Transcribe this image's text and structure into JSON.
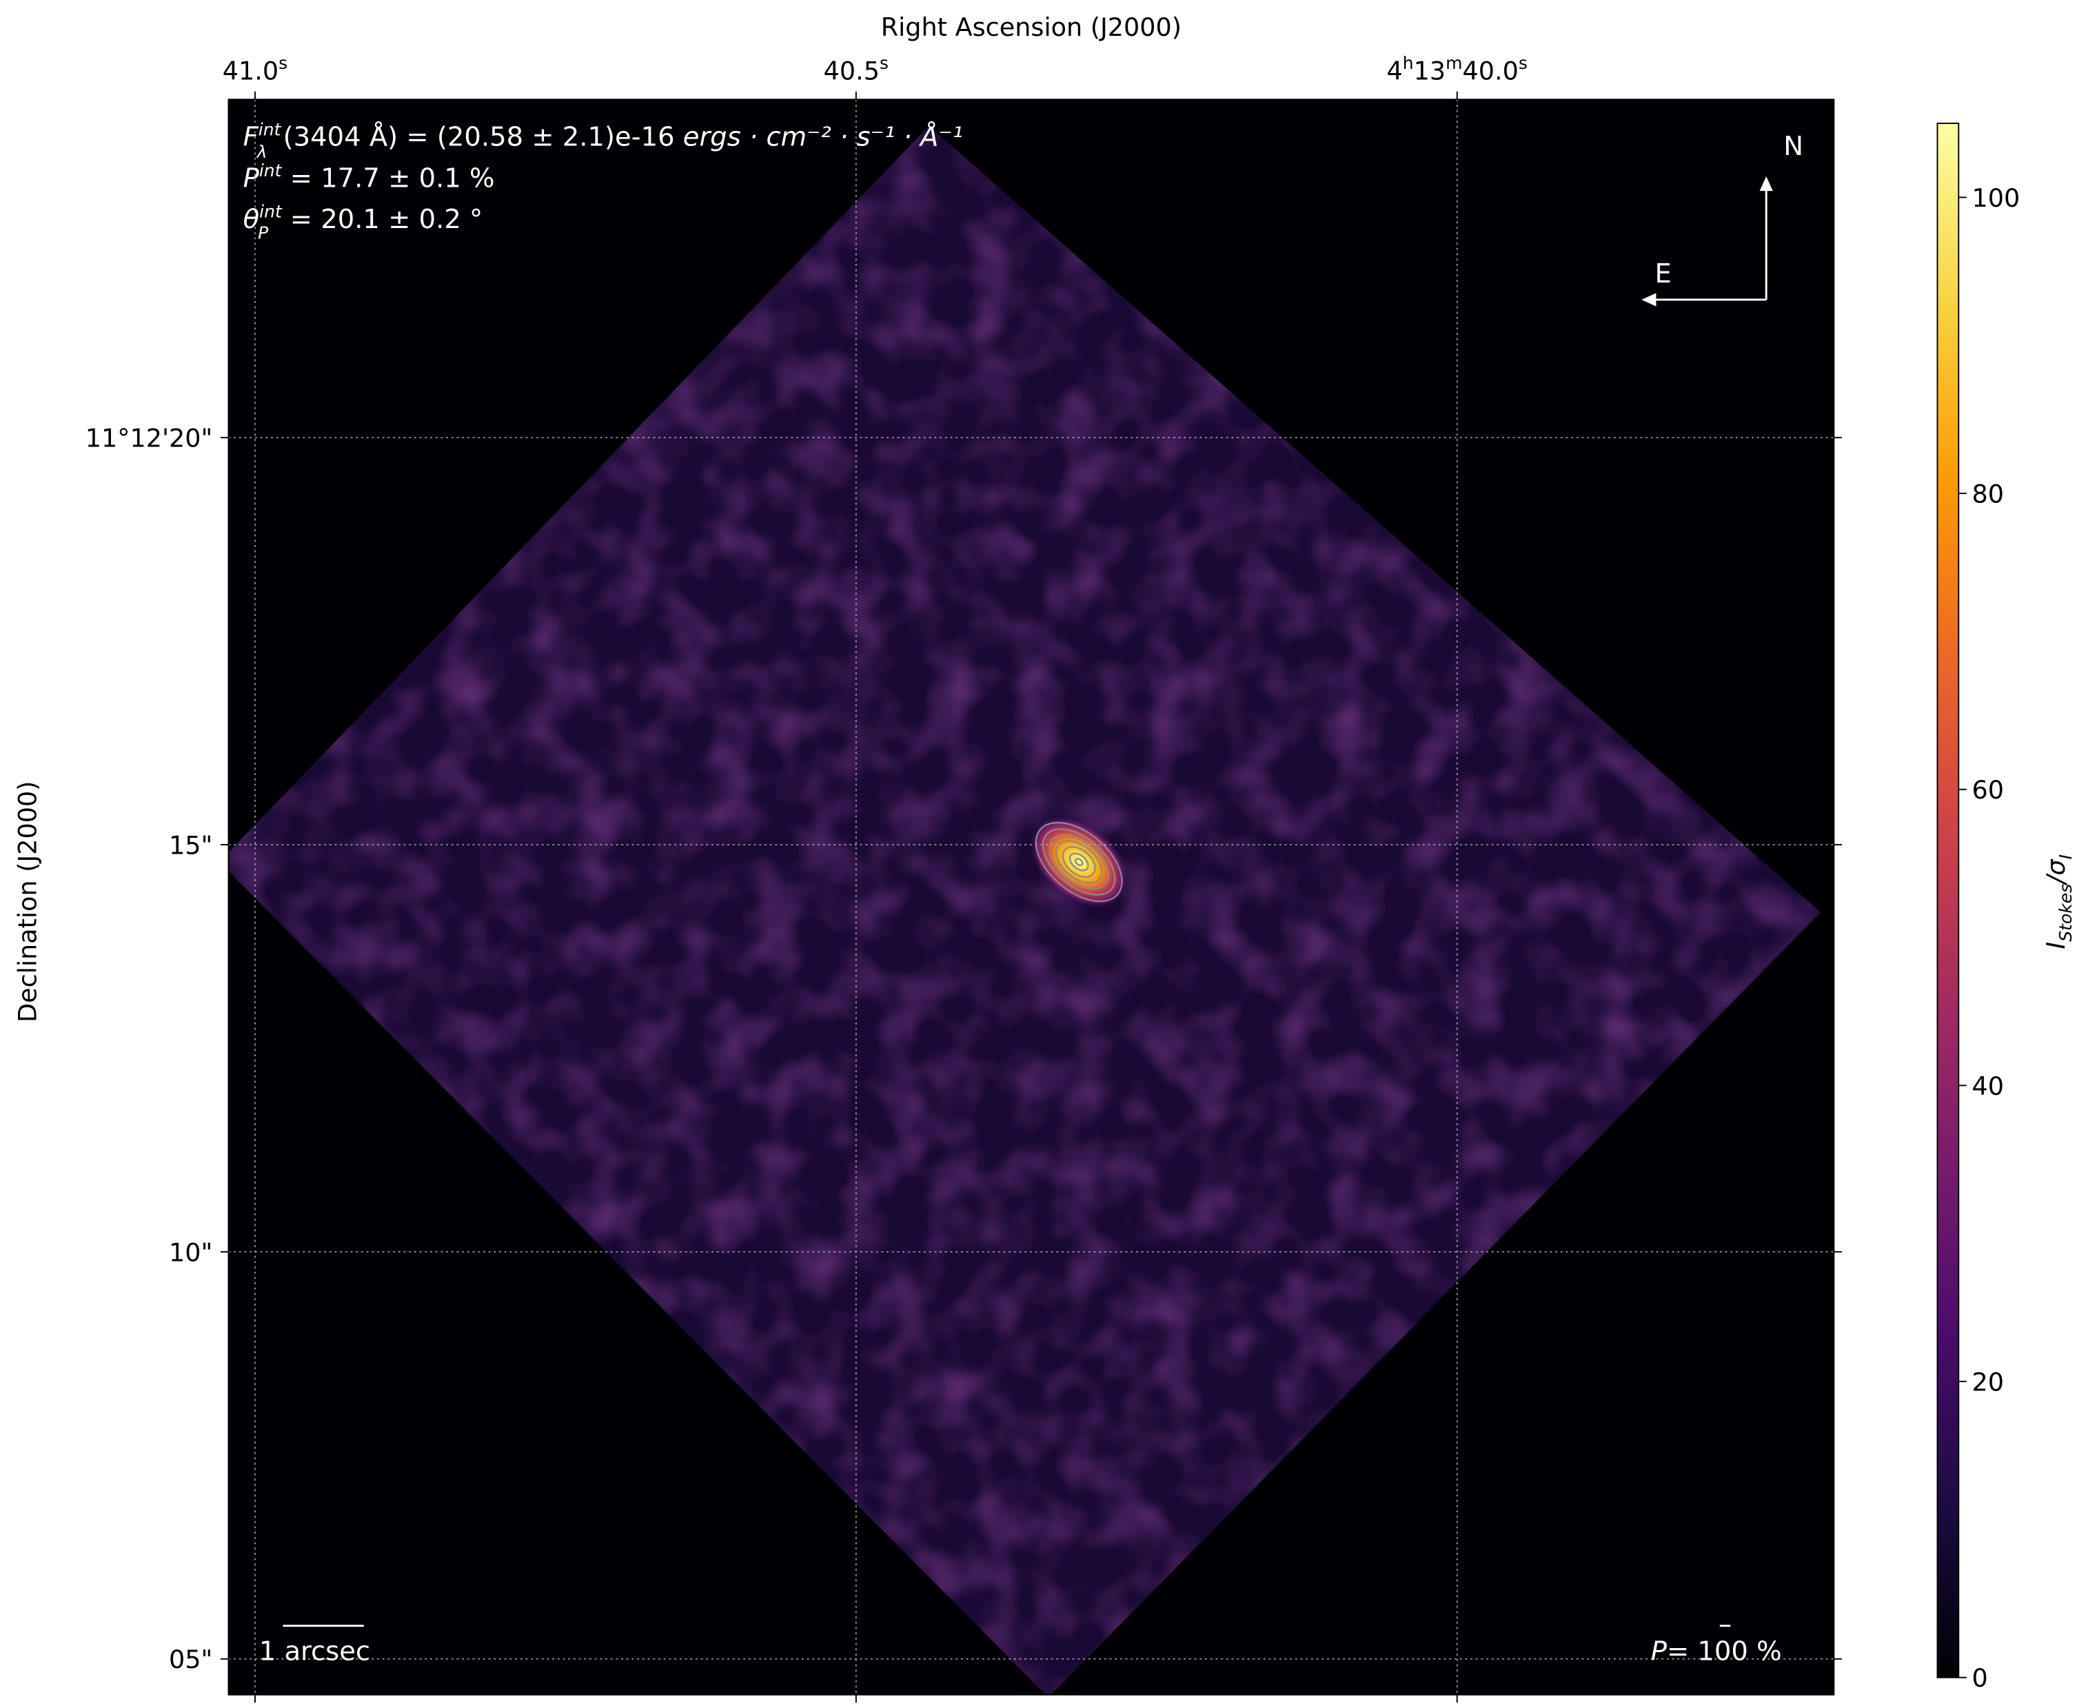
{
  "chart_data": {
    "type": "heatmap",
    "colormap": "inferno",
    "xlabel": "Right Ascension (J2000)",
    "ylabel": "Declination (J2000)",
    "colorbar_label": {
      "base": "I",
      "sub1": "Stokes",
      "sep": "/σ",
      "sub2": "I"
    },
    "colorbar_range": [
      0,
      105
    ],
    "colorbar_ticks": [
      0,
      20,
      40,
      60,
      80,
      100
    ],
    "x_ticks": [
      {
        "pre": "",
        "h": "",
        "m": "",
        "sec": "41.0",
        "s": "s"
      },
      {
        "pre": "",
        "h": "",
        "m": "",
        "sec": "40.5",
        "s": "s"
      },
      {
        "pre": "4",
        "h": "h",
        "m": "13",
        "mm": "m",
        "sec": "40.0",
        "s": "s"
      }
    ],
    "y_ticks": [
      "11°12'20\"",
      "15\"",
      "10\"",
      "05\""
    ],
    "grid": true,
    "source_peak_value": 105,
    "annotations": {
      "flux": {
        "F": "F",
        "sup": "int",
        "sub": "λ",
        "rest": "(3404 Å) = (20.58 ± 2.1)e-16 ",
        "units": "ergs · cm⁻² · s⁻¹ · Å⁻¹"
      },
      "pol": {
        "P": "P",
        "sup": "int",
        "rest": " = 17.7 ± 0.1 %"
      },
      "angle": {
        "theta": "θ",
        "sup": "int",
        "sub": "P",
        "rest": " = 20.1 ± 0.2 °"
      },
      "compass_n": "N",
      "compass_e": "E",
      "scale_bar": "1 arcsec",
      "pol_scale": {
        "P": "P",
        "rest": "= 100 %"
      }
    }
  }
}
